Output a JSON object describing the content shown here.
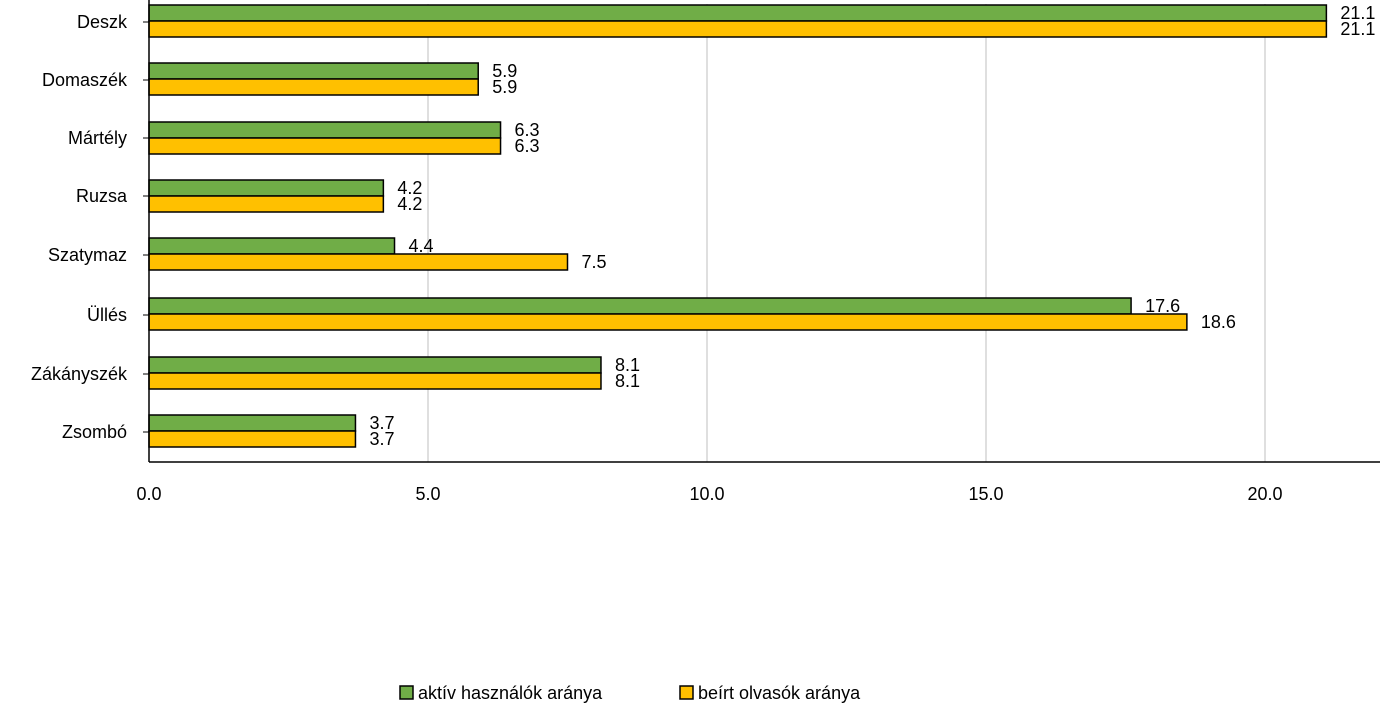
{
  "chart_data": {
    "type": "bar",
    "orientation": "horizontal",
    "title": "",
    "xlabel": "",
    "ylabel": "",
    "categories": [
      "Deszk",
      "Domaszék",
      "Mártély",
      "Ruzsa",
      "Szatymaz",
      "Üllés",
      "Zákányszék",
      "Zsombó"
    ],
    "series": [
      {
        "name": "aktív használók aránya",
        "color": "#70AD47",
        "values": [
          21.1,
          5.9,
          6.3,
          4.2,
          4.4,
          17.6,
          8.1,
          3.7
        ],
        "labels": [
          "21.1",
          "5.9",
          "6.3",
          "4.2",
          "4.4",
          "17.6",
          "8.1",
          "3.7"
        ]
      },
      {
        "name": "beírt olvasók aránya",
        "color": "#FFC000",
        "values": [
          21.1,
          5.9,
          6.3,
          4.2,
          7.5,
          18.6,
          8.1,
          3.7
        ],
        "labels": [
          "21.1",
          "5.9",
          "6.3",
          "4.2",
          "7.5",
          "18.6",
          "8.1",
          "3.7"
        ]
      }
    ],
    "xlim": [
      0,
      22
    ],
    "xticks": [
      0,
      5,
      10,
      15,
      20
    ],
    "xtick_labels": [
      "0.0",
      "5.0",
      "10.0",
      "15.0",
      "20.0"
    ],
    "grid": "vertical",
    "grid_color": "#BFBFBF",
    "bar_outline_color": "#000000",
    "legend_position": "bottom"
  }
}
